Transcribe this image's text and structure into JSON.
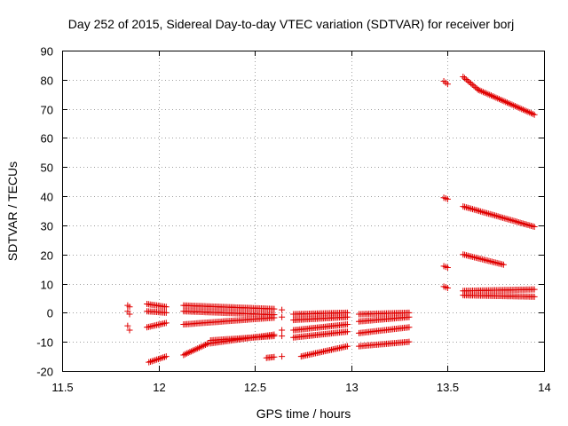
{
  "chart_data": {
    "type": "scatter",
    "title": "Day 252 of 2015, Sidereal Day-to-day VTEC variation (SDTVAR) for receiver borj",
    "xlabel": "GPS time / hours",
    "ylabel": "SDTVAR / TECUs",
    "xlim": [
      11.5,
      14
    ],
    "ylim": [
      -20,
      90
    ],
    "xticks": [
      "11.5",
      "12",
      "12.5",
      "13",
      "13.5",
      "14"
    ],
    "yticks": [
      "-20",
      "-10",
      "0",
      "10",
      "20",
      "30",
      "40",
      "50",
      "60",
      "70",
      "80",
      "90"
    ],
    "grid": true,
    "marker": "+",
    "color": "#e00000",
    "segments": [
      {
        "x0": 11.84,
        "y0": 2.5,
        "x1": 11.85,
        "y1": 2.0,
        "step": 0.008
      },
      {
        "x0": 11.84,
        "y0": 0.5,
        "x1": 11.85,
        "y1": -0.5,
        "step": 0.008
      },
      {
        "x0": 11.84,
        "y0": -4.5,
        "x1": 11.85,
        "y1": -6.0,
        "step": 0.008
      },
      {
        "x0": 11.94,
        "y0": 3.0,
        "x1": 12.04,
        "y1": 2.0,
        "step": 0.0083
      },
      {
        "x0": 11.94,
        "y0": 0.5,
        "x1": 12.04,
        "y1": 0.0,
        "step": 0.0083
      },
      {
        "x0": 11.94,
        "y0": -5.0,
        "x1": 12.04,
        "y1": -3.5,
        "step": 0.0083
      },
      {
        "x0": 11.95,
        "y0": -17.0,
        "x1": 12.04,
        "y1": -15.0,
        "step": 0.0083
      },
      {
        "x0": 12.13,
        "y0": 2.5,
        "x1": 12.6,
        "y1": 1.3,
        "step": 0.0083
      },
      {
        "x0": 12.13,
        "y0": 0.5,
        "x1": 12.6,
        "y1": -0.7,
        "step": 0.0083
      },
      {
        "x0": 12.13,
        "y0": -4.0,
        "x1": 12.6,
        "y1": -1.7,
        "step": 0.0083
      },
      {
        "x0": 12.13,
        "y0": -14.5,
        "x1": 12.26,
        "y1": -10.5,
        "step": 0.0083
      },
      {
        "x0": 12.27,
        "y0": -10.5,
        "x1": 12.6,
        "y1": -7.5,
        "step": 0.0083
      },
      {
        "x0": 12.27,
        "y0": -9.5,
        "x1": 12.6,
        "y1": -8.0,
        "step": 0.0083
      },
      {
        "x0": 12.56,
        "y0": -15.5,
        "x1": 12.6,
        "y1": -15.2,
        "step": 0.0083
      },
      {
        "x0": 12.64,
        "y0": 1.0,
        "x1": 12.64,
        "y1": 1.0,
        "step": 0.0083
      },
      {
        "x0": 12.64,
        "y0": -1.5,
        "x1": 12.64,
        "y1": -1.5,
        "step": 0.0083
      },
      {
        "x0": 12.64,
        "y0": -6.0,
        "x1": 12.64,
        "y1": -6.0,
        "step": 0.0083
      },
      {
        "x0": 12.64,
        "y0": -8.0,
        "x1": 12.64,
        "y1": -8.0,
        "step": 0.0083
      },
      {
        "x0": 12.64,
        "y0": -15.0,
        "x1": 12.64,
        "y1": -15.0,
        "step": 0.0083
      },
      {
        "x0": 12.7,
        "y0": -0.5,
        "x1": 12.98,
        "y1": 0.0,
        "step": 0.0083
      },
      {
        "x0": 12.7,
        "y0": -2.5,
        "x1": 12.98,
        "y1": -1.5,
        "step": 0.0083
      },
      {
        "x0": 12.7,
        "y0": -6.0,
        "x1": 12.98,
        "y1": -4.0,
        "step": 0.0083
      },
      {
        "x0": 12.7,
        "y0": -8.5,
        "x1": 12.98,
        "y1": -6.5,
        "step": 0.0083
      },
      {
        "x0": 12.74,
        "y0": -15.0,
        "x1": 12.98,
        "y1": -11.5,
        "step": 0.0083
      },
      {
        "x0": 13.04,
        "y0": -0.5,
        "x1": 13.3,
        "y1": 0.0,
        "step": 0.0083
      },
      {
        "x0": 13.04,
        "y0": -3.0,
        "x1": 13.3,
        "y1": -1.5,
        "step": 0.0083
      },
      {
        "x0": 13.04,
        "y0": -7.0,
        "x1": 13.3,
        "y1": -5.0,
        "step": 0.0083
      },
      {
        "x0": 13.04,
        "y0": -11.5,
        "x1": 13.3,
        "y1": -10.0,
        "step": 0.0083
      },
      {
        "x0": 13.48,
        "y0": 79.5,
        "x1": 13.5,
        "y1": 78.5,
        "step": 0.008
      },
      {
        "x0": 13.48,
        "y0": 39.5,
        "x1": 13.5,
        "y1": 39.0,
        "step": 0.008
      },
      {
        "x0": 13.48,
        "y0": 16.0,
        "x1": 13.5,
        "y1": 15.5,
        "step": 0.008
      },
      {
        "x0": 13.48,
        "y0": 9.0,
        "x1": 13.5,
        "y1": 8.5,
        "step": 0.008
      },
      {
        "x0": 13.58,
        "y0": 81.0,
        "x1": 13.66,
        "y1": 76.5,
        "step": 0.0083
      },
      {
        "x0": 13.66,
        "y0": 76.5,
        "x1": 13.95,
        "y1": 68.0,
        "step": 0.0083
      },
      {
        "x0": 13.58,
        "y0": 36.5,
        "x1": 13.95,
        "y1": 29.5,
        "step": 0.0083
      },
      {
        "x0": 13.58,
        "y0": 20.0,
        "x1": 13.79,
        "y1": 16.5,
        "step": 0.0083
      },
      {
        "x0": 13.58,
        "y0": 7.5,
        "x1": 13.95,
        "y1": 8.0,
        "step": 0.0083
      },
      {
        "x0": 13.58,
        "y0": 6.0,
        "x1": 13.95,
        "y1": 5.5,
        "step": 0.0083
      }
    ]
  }
}
